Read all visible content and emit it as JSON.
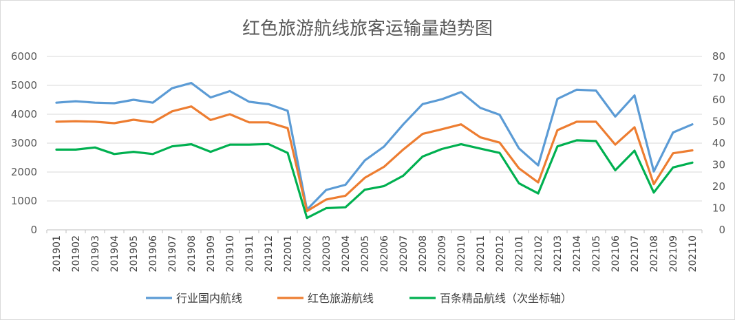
{
  "chart_data": {
    "type": "line",
    "title": "红色旅游航线旅客运输量趋势图",
    "categories": [
      "201901",
      "201902",
      "201903",
      "201904",
      "201905",
      "201906",
      "201907",
      "201908",
      "201909",
      "201910",
      "201911",
      "201912",
      "202001",
      "202002",
      "202003",
      "202004",
      "202005",
      "202006",
      "202007",
      "202008",
      "202009",
      "202010",
      "202011",
      "202012",
      "202101",
      "202102",
      "202103",
      "202104",
      "202105",
      "202106",
      "202107",
      "202108",
      "202109",
      "202110"
    ],
    "y_left": {
      "min": 0,
      "max": 6000,
      "step": 1000,
      "ticks": [
        "0",
        "1000",
        "2000",
        "3000",
        "4000",
        "5000",
        "6000"
      ]
    },
    "y_right": {
      "min": 0,
      "max": 80,
      "step": 10,
      "ticks": [
        "0",
        "10",
        "20",
        "30",
        "40",
        "50",
        "60",
        "70",
        "80"
      ]
    },
    "grid": true,
    "legend_position": "bottom",
    "series": [
      {
        "name": "行业国内航线",
        "axis": "left",
        "color": "#5B9BD5",
        "values": [
          4400,
          4450,
          4400,
          4380,
          4500,
          4400,
          4900,
          5080,
          4580,
          4800,
          4430,
          4350,
          4120,
          700,
          1380,
          1560,
          2400,
          2880,
          3650,
          4350,
          4520,
          4770,
          4220,
          3980,
          2820,
          2230,
          4530,
          4850,
          4820,
          3920,
          4650,
          2020,
          3370,
          3650
        ]
      },
      {
        "name": "红色旅游航线",
        "axis": "left",
        "color": "#ED7D31",
        "values": [
          3740,
          3760,
          3740,
          3690,
          3810,
          3720,
          4100,
          4270,
          3800,
          4000,
          3720,
          3720,
          3520,
          650,
          1050,
          1180,
          1800,
          2180,
          2780,
          3320,
          3480,
          3650,
          3200,
          3020,
          2130,
          1640,
          3450,
          3740,
          3740,
          2950,
          3550,
          1580,
          2650,
          2750
        ]
      },
      {
        "name": "百条精品航线（次坐标轴）",
        "axis": "right",
        "color": "#00B050",
        "values": [
          37,
          37,
          38,
          35,
          36,
          35,
          38.5,
          39.5,
          36,
          39.3,
          39.3,
          39.6,
          35.5,
          5.5,
          10,
          10.4,
          18.5,
          20.2,
          25,
          33.8,
          37.3,
          39.5,
          37.5,
          35.5,
          21.5,
          16.8,
          38.5,
          41.3,
          41,
          27.5,
          36.5,
          17.2,
          28.8,
          31
        ]
      }
    ]
  }
}
